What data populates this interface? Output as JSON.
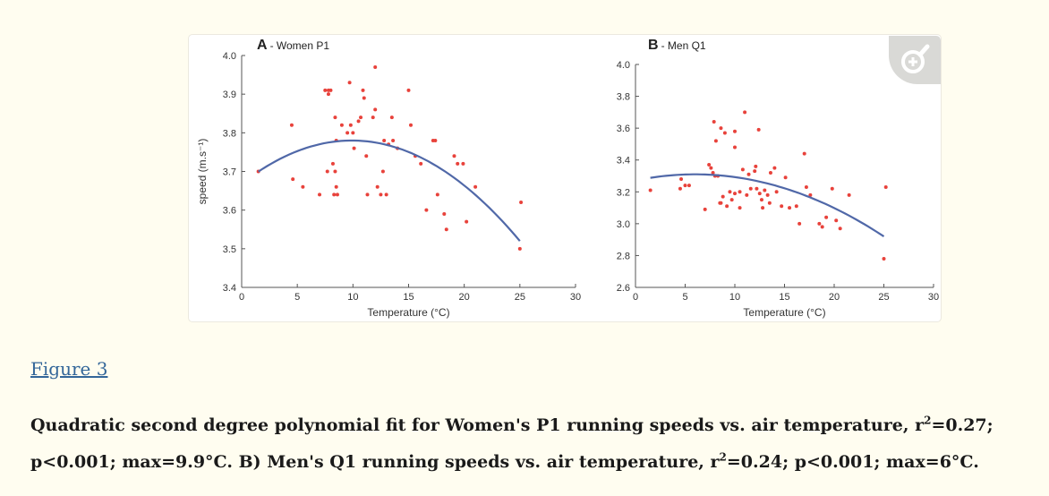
{
  "figure_link": "Figure 3",
  "caption": {
    "part1": "Quadratic second degree polynomial fit for Women's P1 running speeds vs. air temperature, r",
    "sup1": "2",
    "part2": "=0.27; p<0.001; max=9.9°C. B) Men's Q1 running speeds vs. air temperature, r",
    "sup2": "2",
    "part3": "=0.24; p<0.001; max=6°C."
  },
  "zoom_icon": "zoom-in-magnifier-icon",
  "colors": {
    "points": "#e8423b",
    "fit_line": "#5068a8",
    "link": "#336699",
    "background": "#fffdf0"
  },
  "chart_data": [
    {
      "type": "scatter",
      "panel_letter": "A",
      "title": "- Women P1",
      "xlabel": "Temperature (°C)",
      "ylabel": "speed (m.s⁻¹)",
      "xlim": [
        0,
        30
      ],
      "ylim": [
        3.4,
        4.0
      ],
      "xticks": [
        "0",
        "5",
        "10",
        "15",
        "20",
        "25",
        "30"
      ],
      "yticks": [
        "3.4",
        "3.5",
        "3.6",
        "3.7",
        "3.8",
        "3.9",
        "4.0"
      ],
      "fit": {
        "type": "quadratic",
        "x_range": [
          1.5,
          25
        ],
        "max_x": 9.9,
        "max_y": 3.78,
        "y_start": 3.705,
        "y_end": 3.52
      },
      "points": [
        [
          1.5,
          3.7
        ],
        [
          4.5,
          3.82
        ],
        [
          4.6,
          3.68
        ],
        [
          5.5,
          3.66
        ],
        [
          7,
          3.64
        ],
        [
          7.5,
          3.91
        ],
        [
          7.8,
          3.91
        ],
        [
          8,
          3.91
        ],
        [
          7.8,
          3.9
        ],
        [
          7.7,
          3.7
        ],
        [
          8.2,
          3.72
        ],
        [
          8.4,
          3.7
        ],
        [
          8.5,
          3.66
        ],
        [
          8.3,
          3.64
        ],
        [
          8.6,
          3.64
        ],
        [
          8.4,
          3.84
        ],
        [
          8.5,
          3.78
        ],
        [
          9,
          3.82
        ],
        [
          9.5,
          3.8
        ],
        [
          9.7,
          3.93
        ],
        [
          9.8,
          3.82
        ],
        [
          10,
          3.8
        ],
        [
          10.1,
          3.76
        ],
        [
          10.5,
          3.83
        ],
        [
          10.7,
          3.84
        ],
        [
          10.9,
          3.91
        ],
        [
          11,
          3.89
        ],
        [
          11.2,
          3.74
        ],
        [
          11.3,
          3.64
        ],
        [
          11.8,
          3.84
        ],
        [
          12,
          3.86
        ],
        [
          12,
          3.97
        ],
        [
          12.2,
          3.66
        ],
        [
          12.5,
          3.64
        ],
        [
          12.7,
          3.7
        ],
        [
          12.8,
          3.78
        ],
        [
          13,
          3.64
        ],
        [
          13.2,
          3.77
        ],
        [
          13.5,
          3.84
        ],
        [
          13.6,
          3.78
        ],
        [
          14,
          3.76
        ],
        [
          15,
          3.91
        ],
        [
          15.2,
          3.82
        ],
        [
          15.6,
          3.74
        ],
        [
          16.1,
          3.72
        ],
        [
          16.6,
          3.6
        ],
        [
          17.2,
          3.78
        ],
        [
          17.4,
          3.78
        ],
        [
          17.6,
          3.64
        ],
        [
          18.2,
          3.59
        ],
        [
          18.4,
          3.55
        ],
        [
          19.1,
          3.74
        ],
        [
          19.4,
          3.72
        ],
        [
          19.9,
          3.72
        ],
        [
          20.2,
          3.57
        ],
        [
          21,
          3.66
        ],
        [
          25,
          3.5
        ],
        [
          25.1,
          3.62
        ]
      ]
    },
    {
      "type": "scatter",
      "panel_letter": "B",
      "title": "- Men Q1",
      "xlabel": "Temperature (°C)",
      "ylabel": "",
      "xlim": [
        0,
        30
      ],
      "ylim": [
        2.6,
        4.0
      ],
      "xticks": [
        "0",
        "5",
        "10",
        "15",
        "20",
        "25",
        "30"
      ],
      "yticks": [
        "2.6",
        "2.8",
        "3.0",
        "3.2",
        "3.4",
        "3.6",
        "3.8",
        "4.0"
      ],
      "fit": {
        "type": "quadratic",
        "x_range": [
          1.5,
          25
        ],
        "max_x": 6,
        "max_y": 3.31,
        "y_start": 3.29,
        "y_end": 2.92
      },
      "points": [
        [
          1.5,
          3.21
        ],
        [
          4.5,
          3.22
        ],
        [
          4.6,
          3.28
        ],
        [
          5,
          3.24
        ],
        [
          5.4,
          3.24
        ],
        [
          7,
          3.09
        ],
        [
          7.4,
          3.37
        ],
        [
          7.6,
          3.35
        ],
        [
          7.8,
          3.32
        ],
        [
          7.9,
          3.64
        ],
        [
          8,
          3.3
        ],
        [
          8.1,
          3.52
        ],
        [
          8.3,
          3.3
        ],
        [
          8.5,
          3.13
        ],
        [
          8.6,
          3.6
        ],
        [
          8.6,
          3.13
        ],
        [
          8.8,
          3.17
        ],
        [
          9,
          3.57
        ],
        [
          9.2,
          3.11
        ],
        [
          9.5,
          3.2
        ],
        [
          9.7,
          3.15
        ],
        [
          10,
          3.58
        ],
        [
          10,
          3.19
        ],
        [
          10,
          3.48
        ],
        [
          10.5,
          3.1
        ],
        [
          10.5,
          3.2
        ],
        [
          10.8,
          3.34
        ],
        [
          11,
          3.7
        ],
        [
          11.2,
          3.18
        ],
        [
          11.4,
          3.31
        ],
        [
          11.6,
          3.22
        ],
        [
          12,
          3.33
        ],
        [
          12.1,
          3.36
        ],
        [
          12.2,
          3.22
        ],
        [
          12.4,
          3.59
        ],
        [
          12.5,
          3.19
        ],
        [
          12.7,
          3.15
        ],
        [
          12.8,
          3.1
        ],
        [
          13,
          3.21
        ],
        [
          13.3,
          3.18
        ],
        [
          13.5,
          3.13
        ],
        [
          13.6,
          3.32
        ],
        [
          14,
          3.35
        ],
        [
          14.2,
          3.2
        ],
        [
          14.7,
          3.11
        ],
        [
          15.1,
          3.29
        ],
        [
          15.5,
          3.1
        ],
        [
          16.2,
          3.11
        ],
        [
          16.5,
          3.0
        ],
        [
          17,
          3.44
        ],
        [
          17.2,
          3.23
        ],
        [
          17.6,
          3.18
        ],
        [
          18.5,
          3.0
        ],
        [
          18.8,
          2.98
        ],
        [
          19.2,
          3.04
        ],
        [
          19.8,
          3.22
        ],
        [
          20.2,
          3.02
        ],
        [
          20.6,
          2.97
        ],
        [
          21.5,
          3.18
        ],
        [
          25,
          2.78
        ],
        [
          25.2,
          3.23
        ]
      ]
    }
  ]
}
